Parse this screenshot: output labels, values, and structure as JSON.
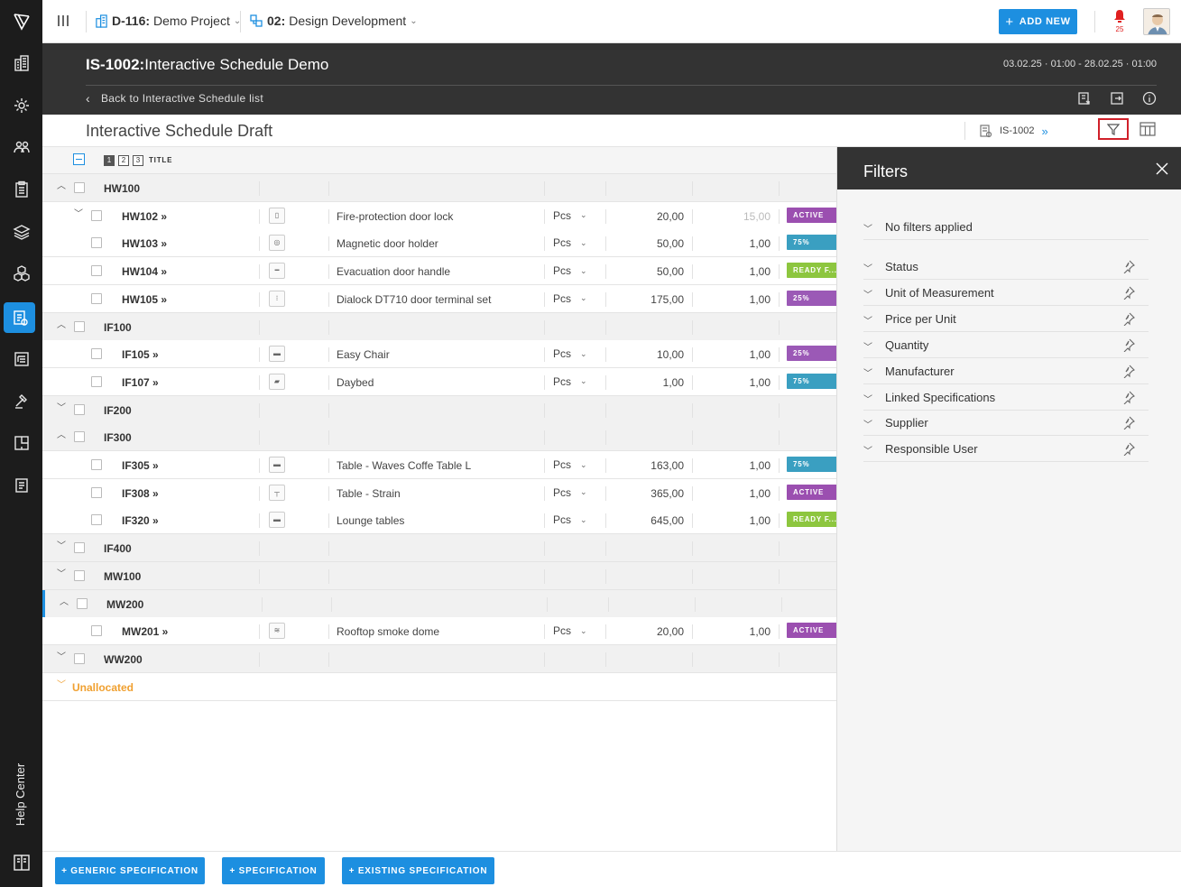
{
  "topbar": {
    "project_code": "D-116:",
    "project_name": "Demo Project",
    "phase_code": "02:",
    "phase_name": "Design Development",
    "add_new_label": "ADD NEW",
    "notification_count": "25"
  },
  "header": {
    "schedule_code": "IS-1002:",
    "schedule_name": "Interactive Schedule Demo",
    "date_range": "03.02.25 · 01:00 - 28.02.25 · 01:00",
    "back_label": "Back to Interactive Schedule list"
  },
  "subheader": {
    "title": "Interactive Schedule Draft",
    "schedule_ref": "IS-1002",
    "ref_arrow": "»"
  },
  "table": {
    "levels": [
      "1",
      "2",
      "3"
    ],
    "title_column": "TITLE"
  },
  "rows": [
    {
      "type": "group",
      "code": "HW100",
      "expanded": true
    },
    {
      "type": "parent",
      "code": "HW102 »",
      "thumb": "▯",
      "name": "Fire-protection door lock",
      "uom": "Pcs",
      "price": "20,00",
      "qty": "15,00",
      "qty_muted": true,
      "status": "ACTIVE",
      "status_color": "#9b4fb0"
    },
    {
      "type": "child",
      "code": "HW103 »",
      "thumb": "◎",
      "name": "Magnetic door holder",
      "uom": "Pcs",
      "price": "50,00",
      "qty": "1,00",
      "status": "75%",
      "status_color": "#3a9fc1"
    },
    {
      "type": "child",
      "code": "HW104 »",
      "thumb": "━",
      "name": "Evacuation door handle",
      "uom": "Pcs",
      "price": "50,00",
      "qty": "1,00",
      "status": "READY F...",
      "status_color": "#8dc63f"
    },
    {
      "type": "child",
      "code": "HW105 »",
      "thumb": "⁝",
      "name": "Dialock DT710 door terminal set",
      "uom": "Pcs",
      "price": "175,00",
      "qty": "1,00",
      "status": "25%",
      "status_color": "#9b59b6"
    },
    {
      "type": "group",
      "code": "IF100",
      "expanded": true
    },
    {
      "type": "child",
      "code": "IF105 »",
      "thumb": "▬",
      "name": "Easy Chair",
      "uom": "Pcs",
      "price": "10,00",
      "qty": "1,00",
      "status": "25%",
      "status_color": "#9b59b6"
    },
    {
      "type": "child",
      "code": "IF107 »",
      "thumb": "▰",
      "name": "Daybed",
      "uom": "Pcs",
      "price": "1,00",
      "qty": "1,00",
      "status": "75%",
      "status_color": "#3a9fc1"
    },
    {
      "type": "group",
      "code": "IF200",
      "expanded": false
    },
    {
      "type": "group",
      "code": "IF300",
      "expanded": true
    },
    {
      "type": "child",
      "code": "IF305 »",
      "thumb": "▬",
      "name": "Table - Waves Coffe Table L",
      "uom": "Pcs",
      "price": "163,00",
      "qty": "1,00",
      "status": "75%",
      "status_color": "#3a9fc1"
    },
    {
      "type": "child",
      "code": "IF308 »",
      "thumb": "┬",
      "name": "Table - Strain",
      "uom": "Pcs",
      "price": "365,00",
      "qty": "1,00",
      "status": "ACTIVE",
      "status_color": "#9b4fb0"
    },
    {
      "type": "child",
      "code": "IF320 »",
      "thumb": "▬",
      "name": "Lounge tables",
      "uom": "Pcs",
      "price": "645,00",
      "qty": "1,00",
      "status": "READY F...",
      "status_color": "#8dc63f"
    },
    {
      "type": "group",
      "code": "IF400",
      "expanded": false
    },
    {
      "type": "group",
      "code": "MW100",
      "expanded": false
    },
    {
      "type": "group",
      "code": "MW200",
      "expanded": true,
      "selected": true
    },
    {
      "type": "child",
      "code": "MW201 »",
      "thumb": "≋",
      "name": "Rooftop smoke dome",
      "uom": "Pcs",
      "price": "20,00",
      "qty": "1,00",
      "status": "ACTIVE",
      "status_color": "#9b4fb0"
    },
    {
      "type": "group",
      "code": "WW200",
      "expanded": false
    },
    {
      "type": "unalloc",
      "code": "Unallocated"
    }
  ],
  "filters": {
    "title": "Filters",
    "items": [
      {
        "label": "No filters applied",
        "pin": false
      },
      {
        "label": "Status",
        "pin": true
      },
      {
        "label": "Unit of Measurement",
        "pin": true
      },
      {
        "label": "Price per Unit",
        "pin": true
      },
      {
        "label": "Quantity",
        "pin": true
      },
      {
        "label": "Manufacturer",
        "pin": true
      },
      {
        "label": "Linked Specifications",
        "pin": true
      },
      {
        "label": "Supplier",
        "pin": true
      },
      {
        "label": "Responsible User",
        "pin": true
      }
    ]
  },
  "sidebar": {
    "help_label": "Help Center",
    "icons": [
      "buildings-icon",
      "gear-sync-icon",
      "users-icon",
      "clipboard-icon",
      "layers-icon",
      "cubes-icon",
      "schedule-icon",
      "list-tree-icon",
      "hammer-icon",
      "floorplan-icon",
      "report-icon"
    ]
  },
  "footer": {
    "btn_generic": "+ GENERIC SPECIFICATION",
    "btn_spec": "+ SPECIFICATION",
    "btn_existing": "+ EXISTING SPECIFICATION"
  },
  "colors": {
    "accent": "#1d8fe0",
    "dark": "#333333",
    "rail": "#1c1c1c",
    "highlight": "#d0202a",
    "unallocated": "#f0a030"
  }
}
